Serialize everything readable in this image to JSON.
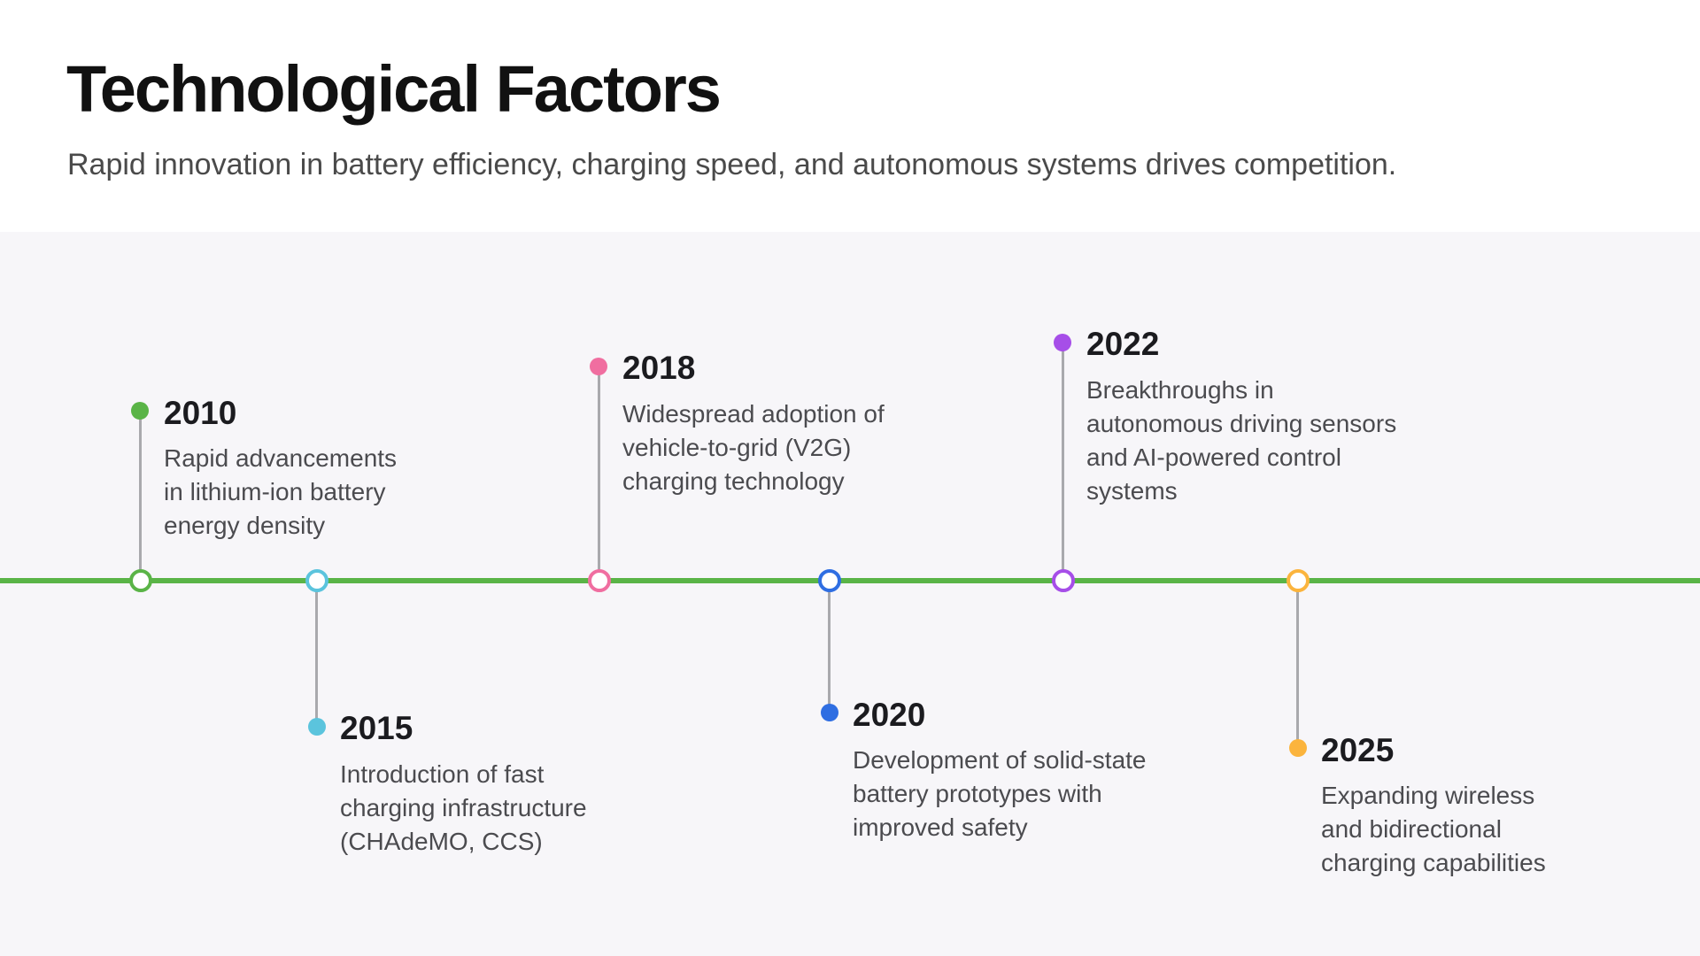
{
  "header": {
    "title": "Technological Factors",
    "subtitle": "Rapid innovation in battery efficiency, charging speed, and autonomous systems drives competition."
  },
  "timeline": {
    "axis_color": "#5ab447",
    "events": [
      {
        "year": "2010",
        "description": "Rapid advancements\nin lithium-ion battery\nenergy density",
        "color": "#5ab447"
      },
      {
        "year": "2015",
        "description": "Introduction of fast\ncharging infrastructure\n(CHAdeMO, CCS)",
        "color": "#5bc4dd"
      },
      {
        "year": "2018",
        "description": "Widespread adoption of\nvehicle-to-grid (V2G)\ncharging technology",
        "color": "#f06ea0"
      },
      {
        "year": "2020",
        "description": "Development of solid-state\nbattery prototypes with\nimproved safety",
        "color": "#2f6ee2"
      },
      {
        "year": "2022",
        "description": "Breakthroughs in\nautonomous driving sensors\nand AI-powered control\nsystems",
        "color": "#a64ee8"
      },
      {
        "year": "2025",
        "description": "Expanding wireless\nand bidirectional\ncharging capabilities",
        "color": "#fbb43d"
      }
    ]
  }
}
